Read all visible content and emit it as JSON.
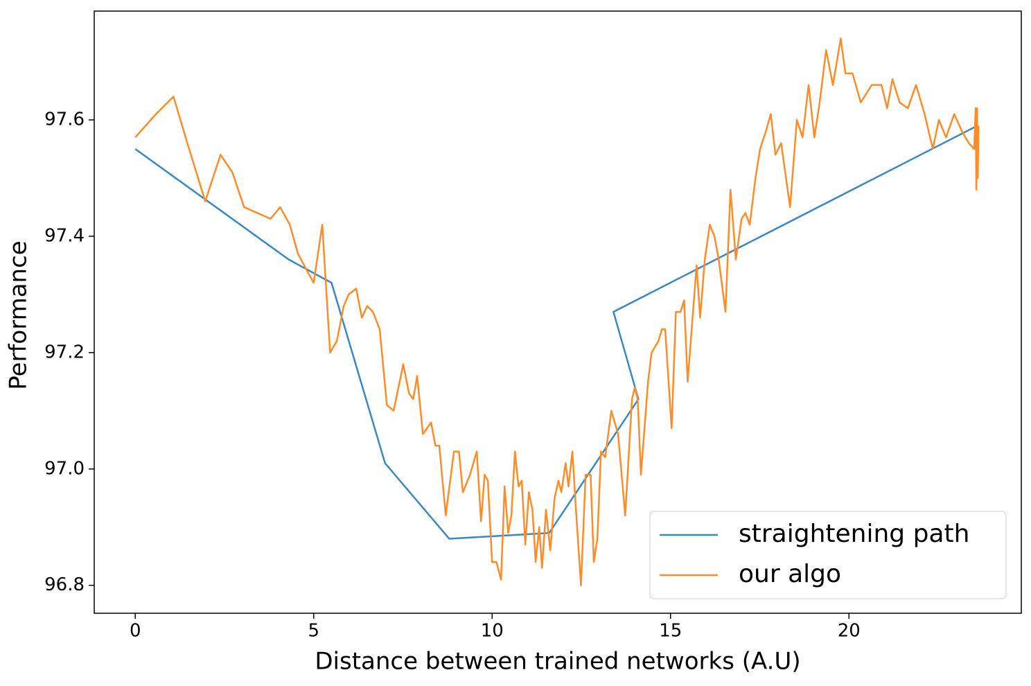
{
  "chart_data": {
    "type": "line",
    "xlabel": "Distance between trained networks (A.U)",
    "ylabel": "Performance",
    "xlim": [
      -1.15,
      24.83
    ],
    "ylim": [
      96.752,
      97.787
    ],
    "xticks": [
      0,
      5,
      10,
      15,
      20
    ],
    "yticks": [
      96.8,
      {
        "value": 97.0,
        "label": "97.0"
      },
      97.2,
      97.4,
      97.6
    ],
    "grid": false,
    "legend": "lower right",
    "series": [
      {
        "name": "straightening path",
        "color": "#3b87c2",
        "x": [
          0,
          4.3,
          5.5,
          7.0,
          8.8,
          11.6,
          14.1,
          13.4,
          23.6
        ],
        "values": [
          97.55,
          97.36,
          97.32,
          97.01,
          96.88,
          96.89,
          97.12,
          97.27,
          97.59
        ]
      },
      {
        "name": "our algo",
        "color": "#ff8c28",
        "x": [
          0,
          0.58,
          1.07,
          1.46,
          1.96,
          2.39,
          2.72,
          3.05,
          3.79,
          4.06,
          4.33,
          4.56,
          4.82,
          5.0,
          5.24,
          5.46,
          5.65,
          5.84,
          5.98,
          6.19,
          6.35,
          6.5,
          6.66,
          6.85,
          7.05,
          7.24,
          7.51,
          7.67,
          7.79,
          7.9,
          8.06,
          8.29,
          8.41,
          8.52,
          8.7,
          8.93,
          9.07,
          9.18,
          9.38,
          9.57,
          9.69,
          9.79,
          9.88,
          10.0,
          10.12,
          10.25,
          10.35,
          10.45,
          10.54,
          10.64,
          10.74,
          10.83,
          10.93,
          11.03,
          11.13,
          11.22,
          11.32,
          11.4,
          11.51,
          11.63,
          11.75,
          11.86,
          11.94,
          12.06,
          12.14,
          12.25,
          12.35,
          12.49,
          12.62,
          12.76,
          12.85,
          12.95,
          13.05,
          13.17,
          13.34,
          13.53,
          13.73,
          13.92,
          14.0,
          14.08,
          14.17,
          14.37,
          14.47,
          14.66,
          14.76,
          14.85,
          15.03,
          15.15,
          15.28,
          15.38,
          15.48,
          15.73,
          15.83,
          15.96,
          16.1,
          16.23,
          16.35,
          16.54,
          16.68,
          16.83,
          16.99,
          17.1,
          17.22,
          17.38,
          17.51,
          17.67,
          17.81,
          17.94,
          18.1,
          18.35,
          18.54,
          18.7,
          18.87,
          19.03,
          19.18,
          19.36,
          19.55,
          19.77,
          19.9,
          20.1,
          20.33,
          20.64,
          20.91,
          21.07,
          21.22,
          21.42,
          21.65,
          21.88,
          22.12,
          22.35,
          22.52,
          22.72,
          22.95,
          23.17,
          23.36,
          23.51,
          23.55,
          23.57,
          23.59,
          23.61,
          23.63
        ],
        "values": [
          97.57,
          97.61,
          97.64,
          97.56,
          97.46,
          97.54,
          97.51,
          97.45,
          97.43,
          97.45,
          97.42,
          97.37,
          97.34,
          97.32,
          97.42,
          97.2,
          97.22,
          97.28,
          97.3,
          97.31,
          97.26,
          97.28,
          97.27,
          97.24,
          97.11,
          97.1,
          97.18,
          97.13,
          97.12,
          97.16,
          97.06,
          97.08,
          97.04,
          97.04,
          96.92,
          97.03,
          97.03,
          96.96,
          96.99,
          97.03,
          96.91,
          96.99,
          96.98,
          96.84,
          96.84,
          96.81,
          96.97,
          96.89,
          96.92,
          97.03,
          96.97,
          96.98,
          96.87,
          96.96,
          96.93,
          96.84,
          96.9,
          96.83,
          96.93,
          96.86,
          96.95,
          96.98,
          96.96,
          97.01,
          96.97,
          97.03,
          96.93,
          96.8,
          96.99,
          96.99,
          96.84,
          96.88,
          97.03,
          97.02,
          97.1,
          97.06,
          96.92,
          97.12,
          97.14,
          97.12,
          96.99,
          97.15,
          97.2,
          97.22,
          97.24,
          97.24,
          97.07,
          97.27,
          97.27,
          97.29,
          97.15,
          97.35,
          97.26,
          97.36,
          97.42,
          97.4,
          97.36,
          97.27,
          97.48,
          97.36,
          97.43,
          97.44,
          97.42,
          97.5,
          97.55,
          97.58,
          97.61,
          97.54,
          97.56,
          97.45,
          97.6,
          97.57,
          97.66,
          97.57,
          97.63,
          97.72,
          97.66,
          97.74,
          97.68,
          97.68,
          97.63,
          97.66,
          97.66,
          97.62,
          97.67,
          97.63,
          97.62,
          97.66,
          97.61,
          97.55,
          97.6,
          97.57,
          97.61,
          97.58,
          97.56,
          97.55,
          97.62,
          97.48,
          97.62,
          97.5,
          97.59
        ]
      }
    ]
  }
}
